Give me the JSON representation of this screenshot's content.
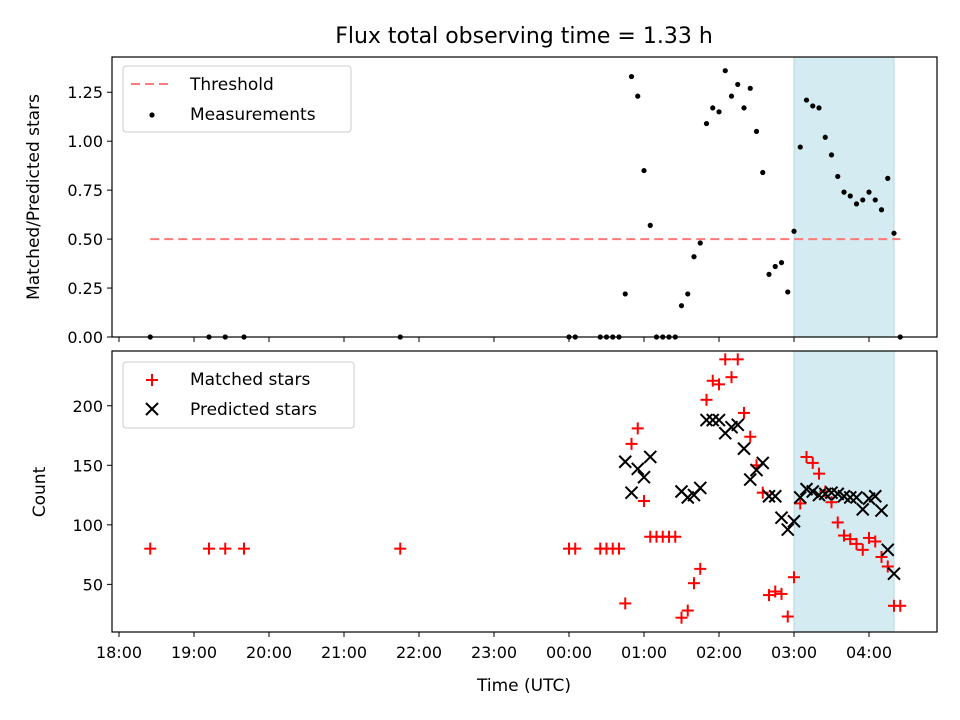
{
  "chart_data": {
    "title": "Flux total observing time = 1.33 h",
    "xlabel": "Time (UTC)",
    "x_ticks": [
      "18:00",
      "19:00",
      "20:00",
      "21:00",
      "22:00",
      "23:00",
      "00:00",
      "01:00",
      "02:00",
      "03:00",
      "04:00"
    ],
    "highlight": {
      "start": "03:00",
      "end": "04:20",
      "color": "#d3ebf1"
    },
    "panels": [
      {
        "type": "scatter",
        "ylabel": "Matched/Predicted stars",
        "ylim": [
          0,
          1.43
        ],
        "y_ticks": [
          0.0,
          0.25,
          0.5,
          0.75,
          1.0,
          1.25
        ],
        "legend_position": "upper left",
        "threshold": {
          "name": "Threshold",
          "value": 0.5,
          "x_start": "18:25",
          "x_end": "04:25",
          "color": "#ff7b7b"
        },
        "series": [
          {
            "name": "Measurements",
            "color": "#000000",
            "marker": "dot",
            "points": [
              [
                "18:25",
                0.0
              ],
              [
                "19:12",
                0.0
              ],
              [
                "19:25",
                0.0
              ],
              [
                "19:40",
                0.0
              ],
              [
                "21:45",
                0.0
              ],
              [
                "00:00",
                0.0
              ],
              [
                "00:05",
                0.0
              ],
              [
                "00:25",
                0.0
              ],
              [
                "00:30",
                0.0
              ],
              [
                "00:35",
                0.0
              ],
              [
                "00:40",
                0.0
              ],
              [
                "00:45",
                0.22
              ],
              [
                "00:50",
                1.33
              ],
              [
                "00:55",
                1.23
              ],
              [
                "01:00",
                0.85
              ],
              [
                "01:05",
                0.57
              ],
              [
                "01:10",
                0.0
              ],
              [
                "01:15",
                0.0
              ],
              [
                "01:20",
                0.0
              ],
              [
                "01:25",
                0.0
              ],
              [
                "01:30",
                0.16
              ],
              [
                "01:35",
                0.22
              ],
              [
                "01:40",
                0.41
              ],
              [
                "01:45",
                0.48
              ],
              [
                "01:50",
                1.09
              ],
              [
                "01:55",
                1.17
              ],
              [
                "02:00",
                1.15
              ],
              [
                "02:05",
                1.36
              ],
              [
                "02:10",
                1.23
              ],
              [
                "02:15",
                1.29
              ],
              [
                "02:20",
                1.17
              ],
              [
                "02:25",
                1.27
              ],
              [
                "02:30",
                1.05
              ],
              [
                "02:35",
                0.84
              ],
              [
                "02:40",
                0.32
              ],
              [
                "02:45",
                0.36
              ],
              [
                "02:50",
                0.38
              ],
              [
                "02:55",
                0.23
              ],
              [
                "03:00",
                0.54
              ],
              [
                "03:05",
                0.97
              ],
              [
                "03:10",
                1.21
              ],
              [
                "03:15",
                1.18
              ],
              [
                "03:20",
                1.17
              ],
              [
                "03:25",
                1.02
              ],
              [
                "03:30",
                0.93
              ],
              [
                "03:35",
                0.82
              ],
              [
                "03:40",
                0.74
              ],
              [
                "03:45",
                0.72
              ],
              [
                "03:50",
                0.68
              ],
              [
                "03:55",
                0.7
              ],
              [
                "04:00",
                0.74
              ],
              [
                "04:05",
                0.7
              ],
              [
                "04:10",
                0.65
              ],
              [
                "04:15",
                0.81
              ],
              [
                "04:20",
                0.53
              ],
              [
                "04:25",
                0.0
              ]
            ]
          }
        ]
      },
      {
        "type": "scatter",
        "ylabel": "Count",
        "ylim": [
          10,
          246
        ],
        "y_ticks": [
          50,
          100,
          150,
          200
        ],
        "legend_position": "upper left",
        "series": [
          {
            "name": "Matched stars",
            "color": "#ff0000",
            "marker": "plus",
            "points": [
              [
                "18:25",
                80
              ],
              [
                "19:12",
                80
              ],
              [
                "19:25",
                80
              ],
              [
                "19:40",
                80
              ],
              [
                "21:45",
                80
              ],
              [
                "00:00",
                80
              ],
              [
                "00:05",
                80
              ],
              [
                "00:25",
                80
              ],
              [
                "00:30",
                80
              ],
              [
                "00:35",
                80
              ],
              [
                "00:40",
                80
              ],
              [
                "00:45",
                34
              ],
              [
                "00:50",
                168
              ],
              [
                "00:55",
                181
              ],
              [
                "01:00",
                120
              ],
              [
                "01:05",
                90
              ],
              [
                "01:10",
                90
              ],
              [
                "01:15",
                90
              ],
              [
                "01:20",
                90
              ],
              [
                "01:25",
                90
              ],
              [
                "01:30",
                22
              ],
              [
                "01:35",
                28
              ],
              [
                "01:40",
                51
              ],
              [
                "01:45",
                63
              ],
              [
                "01:50",
                205
              ],
              [
                "01:55",
                221
              ],
              [
                "02:00",
                218
              ],
              [
                "02:05",
                239
              ],
              [
                "02:10",
                224
              ],
              [
                "02:15",
                239
              ],
              [
                "02:20",
                194
              ],
              [
                "02:25",
                174
              ],
              [
                "02:30",
                150
              ],
              [
                "02:35",
                127
              ],
              [
                "02:40",
                41
              ],
              [
                "02:45",
                44
              ],
              [
                "02:50",
                42
              ],
              [
                "02:55",
                23
              ],
              [
                "03:00",
                56
              ],
              [
                "03:05",
                118
              ],
              [
                "03:10",
                157
              ],
              [
                "03:15",
                152
              ],
              [
                "03:20",
                143
              ],
              [
                "03:25",
                128
              ],
              [
                "03:30",
                119
              ],
              [
                "03:35",
                102
              ],
              [
                "03:40",
                91
              ],
              [
                "03:45",
                88
              ],
              [
                "03:50",
                84
              ],
              [
                "03:55",
                79
              ],
              [
                "04:00",
                89
              ],
              [
                "04:05",
                86
              ],
              [
                "04:10",
                73
              ],
              [
                "04:15",
                65
              ],
              [
                "04:20",
                32
              ],
              [
                "04:25",
                32
              ]
            ]
          },
          {
            "name": "Predicted stars",
            "color": "#000000",
            "marker": "x",
            "points": [
              [
                "00:45",
                153
              ],
              [
                "00:50",
                127
              ],
              [
                "00:55",
                147
              ],
              [
                "01:00",
                140
              ],
              [
                "01:05",
                157
              ],
              [
                "01:30",
                128
              ],
              [
                "01:35",
                123
              ],
              [
                "01:40",
                125
              ],
              [
                "01:45",
                131
              ],
              [
                "01:50",
                188
              ],
              [
                "01:55",
                188
              ],
              [
                "02:00",
                188
              ],
              [
                "02:05",
                177
              ],
              [
                "02:10",
                182
              ],
              [
                "02:15",
                184
              ],
              [
                "02:20",
                164
              ],
              [
                "02:25",
                138
              ],
              [
                "02:30",
                146
              ],
              [
                "02:35",
                152
              ],
              [
                "02:40",
                124
              ],
              [
                "02:45",
                124
              ],
              [
                "02:50",
                106
              ],
              [
                "02:55",
                96
              ],
              [
                "03:00",
                103
              ],
              [
                "03:05",
                123
              ],
              [
                "03:10",
                130
              ],
              [
                "03:15",
                128
              ],
              [
                "03:20",
                125
              ],
              [
                "03:25",
                126
              ],
              [
                "03:30",
                127
              ],
              [
                "03:35",
                126
              ],
              [
                "03:40",
                124
              ],
              [
                "03:45",
                123
              ],
              [
                "03:50",
                123
              ],
              [
                "03:55",
                113
              ],
              [
                "04:00",
                122
              ],
              [
                "04:05",
                124
              ],
              [
                "04:10",
                112
              ],
              [
                "04:15",
                79
              ],
              [
                "04:20",
                59
              ]
            ]
          }
        ]
      }
    ]
  }
}
